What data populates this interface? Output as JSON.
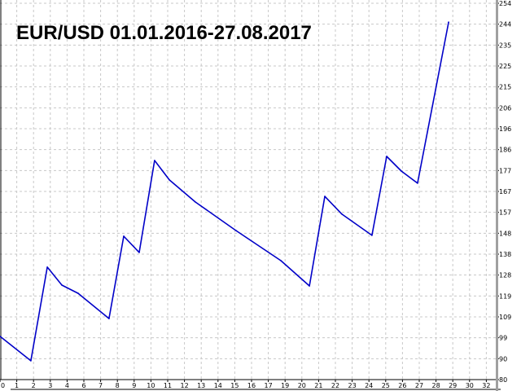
{
  "chart_data": {
    "type": "line",
    "title": "EUR/USD 01.01.2016-27.08.2017",
    "xlabel": "",
    "ylabel": "",
    "x_tick_labels": [
      "0",
      "1",
      "2",
      "3",
      "4",
      "6",
      "7",
      "8",
      "9",
      "10",
      "11",
      "12",
      "13",
      "14",
      "15",
      "16",
      "17",
      "19",
      "20",
      "21",
      "22",
      "23",
      "24",
      "25",
      "26",
      "27",
      "28",
      "29",
      "30",
      "32"
    ],
    "y_tick_labels": [
      "80",
      "90",
      "99",
      "109",
      "119",
      "128",
      "138",
      "148",
      "157",
      "167",
      "177",
      "186",
      "196",
      "206",
      "215",
      "225",
      "235",
      "244",
      "254"
    ],
    "ylim": [
      80,
      254
    ],
    "xlim": [
      0,
      29.6
    ],
    "grid": true,
    "y_axis_side": "right",
    "series": [
      {
        "color": "#0000c8",
        "x": [
          0,
          1.84,
          2.82,
          3.69,
          4.66,
          6.5,
          7.38,
          8.3,
          9.22,
          10.1,
          11.65,
          14.08,
          16.75,
          18.45,
          19.37,
          20.39,
          22.18,
          23.06,
          23.93,
          24.9,
          26.75
        ],
        "y": [
          100.0,
          88.7,
          132.0,
          123.7,
          119.9,
          108.2,
          146.3,
          138.8,
          181.3,
          172.3,
          162.1,
          148.9,
          135.0,
          123.3,
          164.7,
          156.5,
          146.7,
          183.2,
          176.4,
          170.8,
          245.3
        ]
      }
    ],
    "colors": {
      "line": "#0000c8",
      "grid": "#c8c8c8",
      "axis_bar": "#a0a0a0"
    }
  }
}
